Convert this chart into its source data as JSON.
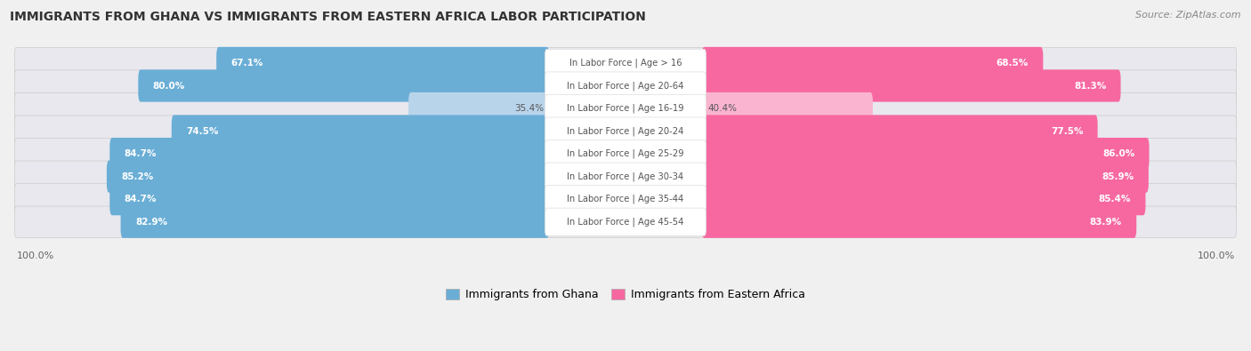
{
  "title": "IMMIGRANTS FROM GHANA VS IMMIGRANTS FROM EASTERN AFRICA LABOR PARTICIPATION",
  "source": "Source: ZipAtlas.com",
  "categories": [
    "In Labor Force | Age > 16",
    "In Labor Force | Age 20-64",
    "In Labor Force | Age 16-19",
    "In Labor Force | Age 20-24",
    "In Labor Force | Age 25-29",
    "In Labor Force | Age 30-34",
    "In Labor Force | Age 35-44",
    "In Labor Force | Age 45-54"
  ],
  "ghana_values": [
    67.1,
    80.0,
    35.4,
    74.5,
    84.7,
    85.2,
    84.7,
    82.9
  ],
  "eastern_africa_values": [
    68.5,
    81.3,
    40.4,
    77.5,
    86.0,
    85.9,
    85.4,
    83.9
  ],
  "ghana_color": "#6aaed6",
  "ghana_color_light": "#b8d4eb",
  "eastern_africa_color": "#f768a1",
  "eastern_africa_color_light": "#fbb4d0",
  "row_bg_color": "#e8eaf0",
  "background_color": "#f0f0f0",
  "max_value": 100.0,
  "legend_ghana": "Immigrants from Ghana",
  "legend_eastern_africa": "Immigrants from Eastern Africa",
  "light_threshold": 50.0
}
